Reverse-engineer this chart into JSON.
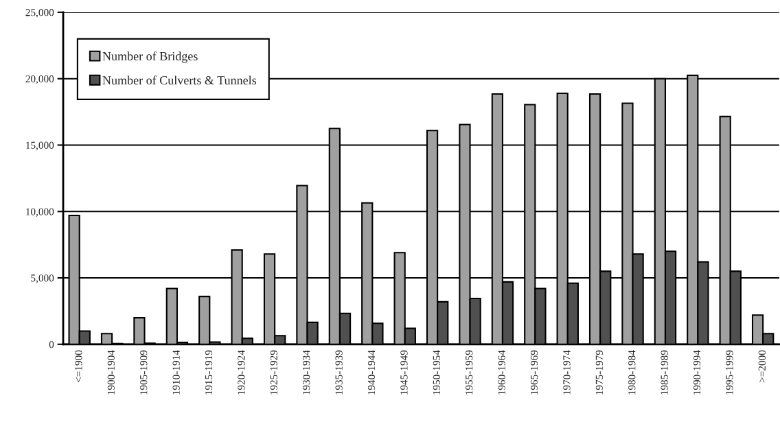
{
  "chart_data": {
    "type": "bar",
    "categories": [
      "<=1900",
      "1900-1904",
      "1905-1909",
      "1910-1914",
      "1915-1919",
      "1920-1924",
      "1925-1929",
      "1930-1934",
      "1935-1939",
      "1940-1944",
      "1945-1949",
      "1950-1954",
      "1955-1959",
      "1960-1964",
      "1965-1969",
      "1970-1974",
      "1975-1979",
      "1980-1984",
      "1985-1989",
      "1990-1994",
      "1995-1999",
      ">=2000"
    ],
    "series": [
      {
        "name": "Number of Bridges",
        "color": "#a0a0a0",
        "values": [
          9700,
          800,
          2000,
          4200,
          3600,
          7100,
          6800,
          11950,
          16250,
          10650,
          6900,
          16100,
          16550,
          18850,
          18050,
          18900,
          18850,
          18150,
          20000,
          20250,
          17150,
          2200
        ]
      },
      {
        "name": "Number of Culverts & Tunnels",
        "color": "#505050",
        "values": [
          1000,
          50,
          80,
          140,
          170,
          450,
          650,
          1650,
          2330,
          1580,
          1200,
          3200,
          3450,
          4700,
          4200,
          4600,
          5500,
          6800,
          7000,
          6200,
          5500,
          800
        ]
      }
    ],
    "ylim": [
      0,
      25000
    ],
    "yticks": [
      {
        "value": 0,
        "label": "0"
      },
      {
        "value": 5000,
        "label": "5,000"
      },
      {
        "value": 10000,
        "label": "10,000"
      },
      {
        "value": 15000,
        "label": "15,000"
      },
      {
        "value": 20000,
        "label": "20,000"
      },
      {
        "value": 25000,
        "label": "25,000"
      }
    ],
    "grid": "y",
    "legend": "top left"
  }
}
